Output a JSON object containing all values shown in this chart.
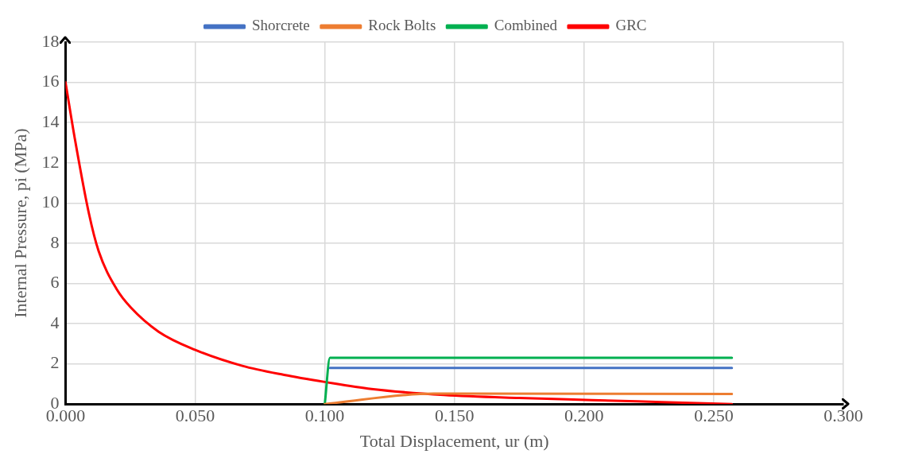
{
  "chart_data": {
    "type": "line",
    "xlabel": "Total Displacement, ur (m)",
    "ylabel": "Internal Pressure, pi (MPa)",
    "xlim": [
      0,
      0.3
    ],
    "xticks": [
      {
        "value": 0,
        "label": "0.000"
      },
      {
        "value": 0.05,
        "label": "0.050"
      },
      {
        "value": 0.1,
        "label": "0.100"
      },
      {
        "value": 0.15,
        "label": "0.150"
      },
      {
        "value": 0.2,
        "label": "0.200"
      },
      {
        "value": 0.25,
        "label": "0.250"
      },
      {
        "value": 0.3,
        "label": "0.300"
      }
    ],
    "ylim": [
      0,
      18
    ],
    "yticks": [
      0,
      2,
      4,
      6,
      8,
      10,
      12,
      14,
      16,
      18
    ],
    "grid": true,
    "legend": "top",
    "marker": "none",
    "line_style": "solid",
    "series": [
      {
        "name": "Shorcrete",
        "color": "#4472c4",
        "x": [
          0.102,
          0.257
        ],
        "values": [
          1.8,
          1.8
        ]
      },
      {
        "name": "Rock Bolts",
        "color": "#ed7d31",
        "x": [
          0.1,
          0.142,
          0.257
        ],
        "values": [
          0,
          0.52,
          0.5
        ]
      },
      {
        "name": "Combined",
        "color": "#00b050",
        "x": [
          0.1,
          0.102,
          0.257
        ],
        "values": [
          0,
          2.3,
          2.3
        ]
      },
      {
        "name": "GRC",
        "color": "#ff0000",
        "x": [
          0,
          0.0036,
          0.009,
          0.0128,
          0.0198,
          0.0252,
          0.0359,
          0.0499,
          0.0682,
          0.0843,
          0.1,
          0.118,
          0.146,
          0.175,
          0.203,
          0.23,
          0.257
        ],
        "values": [
          16,
          13.2,
          9.5,
          7.6,
          5.7,
          4.8,
          3.6,
          2.7,
          1.9,
          1.45,
          1.1,
          0.75,
          0.45,
          0.3,
          0.2,
          0.1,
          0
        ]
      }
    ]
  }
}
